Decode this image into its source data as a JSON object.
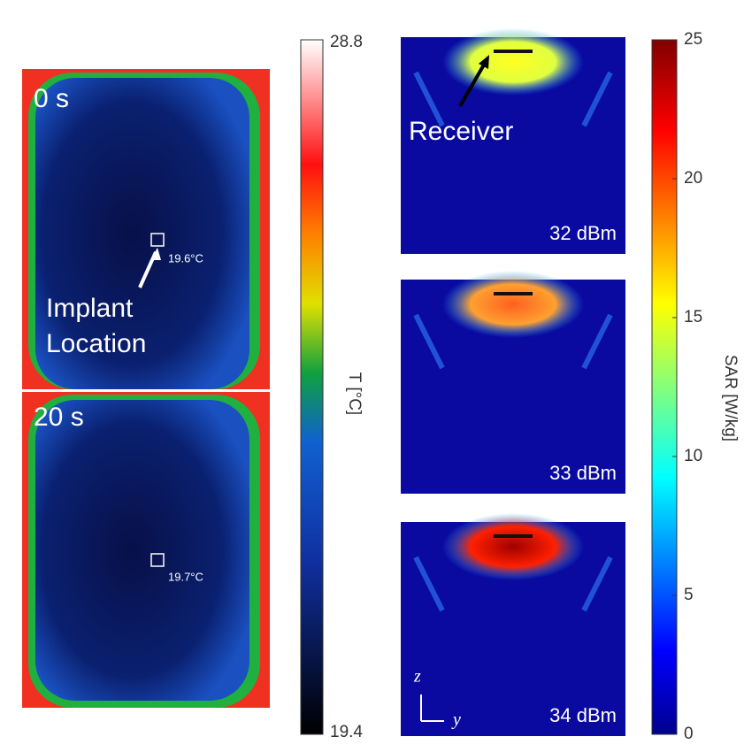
{
  "thermal": {
    "panels": [
      {
        "time": "0 s",
        "reading": "19.6°C"
      },
      {
        "time": "20 s",
        "reading": "19.7°C"
      }
    ],
    "annotation": [
      "Implant",
      "Location"
    ]
  },
  "temp_colorbar": {
    "label": "T [°C]",
    "lim": [
      19.4,
      28.8
    ],
    "ticks": [
      19.4,
      28.8
    ]
  },
  "sar": {
    "panels": [
      {
        "power": "32 dBm"
      },
      {
        "power": "33 dBm"
      },
      {
        "power": "34 dBm"
      }
    ],
    "receiver": "Receiver",
    "axis_z": "z",
    "axis_y": "y"
  },
  "sar_colorbar": {
    "label": "SAR [W/kg]",
    "lim": [
      0,
      25
    ],
    "ticks": [
      0,
      5,
      10,
      15,
      20,
      25
    ]
  }
}
